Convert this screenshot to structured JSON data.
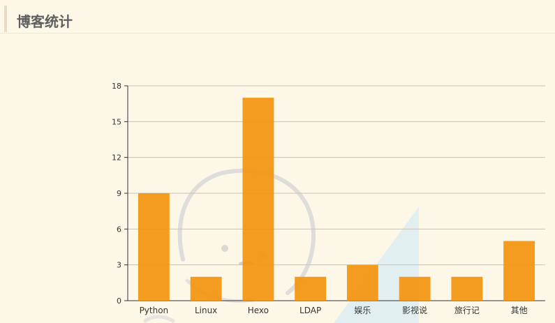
{
  "header": {
    "title": "博客统计"
  },
  "colors": {
    "bar": "#f39410",
    "grid": "#c9c2b4",
    "axis": "#333333",
    "watermark_blue": "#cfe9f6"
  },
  "watermark": {
    "icon": "sketch-mascot-icon"
  },
  "chart_data": {
    "type": "bar",
    "categories": [
      "Python",
      "Linux",
      "Hexo",
      "LDAP",
      "娱乐",
      "影视说",
      "旅行记",
      "其他"
    ],
    "values": [
      9,
      2,
      17,
      2,
      3,
      2,
      2,
      5
    ],
    "ylim": [
      0,
      18
    ],
    "yticks": [
      0,
      3,
      6,
      9,
      12,
      15,
      18
    ],
    "grid": true,
    "legend": "none"
  }
}
